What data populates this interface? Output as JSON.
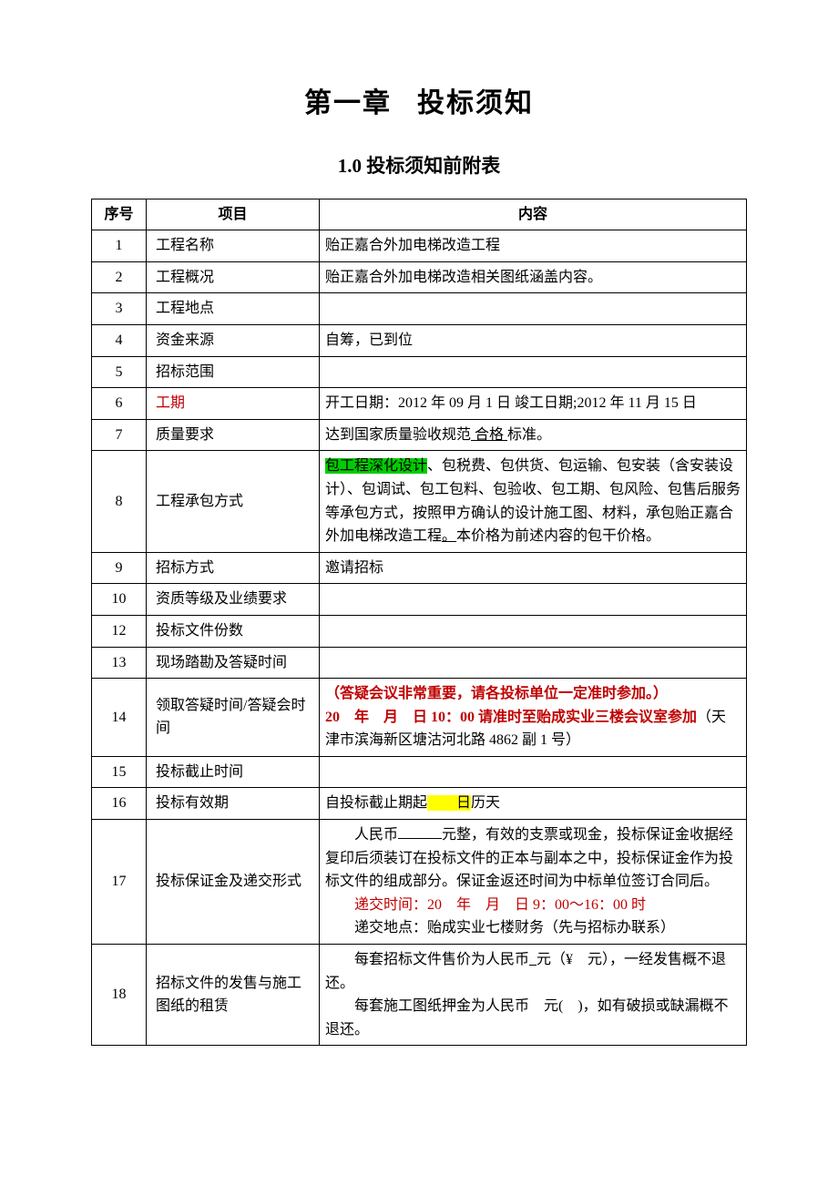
{
  "title_part1": "第一章",
  "title_part2": "投标须知",
  "subtitle": "1.0 投标须知前附表",
  "headers": {
    "seq": "序号",
    "item": "项目",
    "content": "内容"
  },
  "colors": {
    "text": "#000000",
    "red": "#c00000",
    "highlight_green": "#00cc00",
    "highlight_yellow": "#ffff00",
    "border": "#000000",
    "background": "#ffffff"
  },
  "fontsize": {
    "h1": 30,
    "h2": 21,
    "cell": 16
  },
  "rows": [
    {
      "n": "1",
      "item": "工程名称",
      "content_plain": "贻正嘉合外加电梯改造工程"
    },
    {
      "n": "2",
      "item": "工程概况",
      "content_plain": "贻正嘉合外加电梯改造相关图纸涵盖内容。"
    },
    {
      "n": "3",
      "item": "工程地点",
      "content_plain": ""
    },
    {
      "n": "4",
      "item": "资金来源",
      "content_plain": "自筹，已到位"
    },
    {
      "n": "5",
      "item": "招标范围",
      "content_plain": ""
    },
    {
      "n": "6",
      "item_red": "工期",
      "content_plain": "开工日期：2012 年 09 月 1 日 竣工日期;2012 年 11 月 15 日"
    },
    {
      "n": "7",
      "item": "质量要求",
      "parts": [
        {
          "t": "达到国家质量验收规范"
        },
        {
          "t": " 合格 ",
          "underline": true
        },
        {
          "t": "标准。"
        }
      ]
    },
    {
      "n": "8",
      "item": "工程承包方式",
      "parts": [
        {
          "t": "包工程深化设计",
          "hl": "green"
        },
        {
          "t": "、包税费、包供货、包运输、包安装（含安装设计）、包调试、包工包料、包验收、包工期、包风险、包售后服务等承包方式，按照甲方确认的设计施工图、材料，承包贻正嘉合外加电梯改造工程"
        },
        {
          "t": "。",
          "underline": true
        },
        {
          "t": "本价格为前述内容的包干价格。"
        }
      ]
    },
    {
      "n": "9",
      "item": "招标方式",
      "content_plain": "邀请招标"
    },
    {
      "n": "10",
      "item": "资质等级及业绩要求",
      "content_plain": ""
    },
    {
      "n": "12",
      "item": "投标文件份数",
      "content_plain": ""
    },
    {
      "n": "13",
      "item": "现场踏勘及答疑时间",
      "content_plain": ""
    },
    {
      "n": "14",
      "item": "领取答疑时间/答疑会时间",
      "parts": [
        {
          "t": "（答疑会议非常重要，请各投标单位一定准时参加。）",
          "red": true,
          "bold": true
        },
        {
          "br": true
        },
        {
          "t": "20　年　月　日 10：00 请准时至贻成实业三楼会议室参加",
          "red": true,
          "bold": true
        },
        {
          "t": "（天津市滨海新区塘沽河北路 4862 副 1 号）"
        }
      ]
    },
    {
      "n": "15",
      "item": "投标截止时间",
      "content_plain": ""
    },
    {
      "n": "16",
      "item": "投标有效期",
      "parts": [
        {
          "t": "自投标截止期起"
        },
        {
          "t": "　　日",
          "hl": "yellow"
        },
        {
          "t": "历天"
        }
      ]
    },
    {
      "n": "17",
      "item": "投标保证金及递交形式",
      "parts": [
        {
          "indent": true
        },
        {
          "t": "人民币"
        },
        {
          "blank": true
        },
        {
          "t": "元整，有效的支票或现金，投标保证金收据经复印后须装订在投标文件的正本与副本之中，投标保证金作为投标文件的组成部分。保证金返还时间为中标单位签订合同后。"
        },
        {
          "br": true
        },
        {
          "indent": true
        },
        {
          "t": "递交时间：20　年　月　日 9：00～16：00 时",
          "red": true
        },
        {
          "br": true
        },
        {
          "indent": true
        },
        {
          "t": "递交地点：贻成实业七楼财务（先与招标办联系）"
        }
      ]
    },
    {
      "n": "18",
      "item": "招标文件的发售与施工图纸的租赁",
      "parts": [
        {
          "indent": true
        },
        {
          "t": "每套招标文件售价为人民币"
        },
        {
          "t": "_",
          "underline": true
        },
        {
          "t": "元（¥　元），一经发售概不退还。"
        },
        {
          "br": true
        },
        {
          "indent": true
        },
        {
          "t": "每套施工图纸押金为人民币　元(　)，如有破损或缺漏概不退还。"
        }
      ]
    }
  ]
}
